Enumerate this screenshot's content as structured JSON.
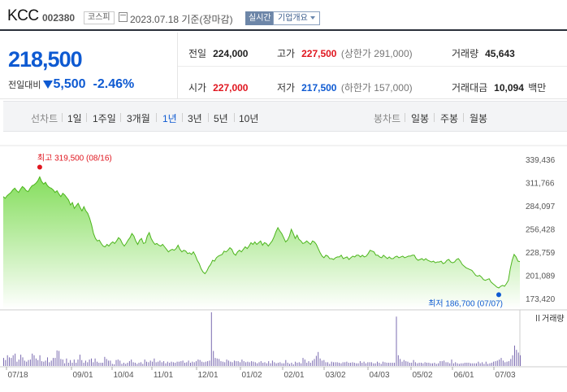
{
  "header": {
    "name": "KCC",
    "code": "002380",
    "market": "코스피",
    "date_text": "2023.07.18 기준(장마감)",
    "realtime_label": "실시간",
    "company_label": "기업개요"
  },
  "summary": {
    "price": "218,500",
    "change_label": "전일대비",
    "change": "5,500",
    "change_pct": "-2.46%",
    "prev_close_label": "전일",
    "prev_close": "224,000",
    "high_label": "고가",
    "high": "227,500",
    "upper_limit": "(상한가 291,000)",
    "volume_label": "거래량",
    "volume": "45,643",
    "open_label": "시가",
    "open": "227,000",
    "low_label": "저가",
    "low": "217,500",
    "lower_limit": "(하한가 157,000)",
    "value_label": "거래대금",
    "value": "10,094",
    "value_unit": "백만"
  },
  "tabs": {
    "line_label": "선차트",
    "periods": [
      "1일",
      "1주일",
      "3개월",
      "1년",
      "3년",
      "5년",
      "10년"
    ],
    "active_period": "1년",
    "candle_label": "봉차트",
    "candles": [
      "일봉",
      "주봉",
      "월봉"
    ]
  },
  "colors": {
    "price_up": "#e0161f",
    "price_down": "#0e5ad2",
    "area_fill": "#8fe26a",
    "line": "#4cb51c",
    "volume_bar": "#7b6bb0"
  },
  "chart_data": {
    "type": "area",
    "y_ticks": [
      "339,436",
      "311,766",
      "284,097",
      "256,428",
      "228,759",
      "201,089",
      "173,420"
    ],
    "ylim": [
      173420,
      339436
    ],
    "x_ticks": [
      "07/18",
      "09/01",
      "10/04",
      "11/01",
      "12/01",
      "01/02",
      "02/01",
      "03/02",
      "04/03",
      "05/02",
      "06/01",
      "07/03"
    ],
    "max_annotation": "최고 319,500 (08/16)",
    "min_annotation": "최저 186,700 (07/07)",
    "max_value": 319500,
    "min_value": 186700,
    "volume_label": "거래량",
    "series": [
      {
        "values": [
          296000,
          294000,
          297000,
          299000,
          301000,
          304000,
          306000,
          303000,
          301000,
          305000,
          308000,
          306000,
          303000,
          302000,
          306000,
          309000,
          310000,
          312000,
          315000,
          319500,
          314000,
          311000,
          313000,
          309000,
          307000,
          306000,
          304000,
          301000,
          303000,
          299000,
          296000,
          300000,
          298000,
          295000,
          292000,
          286000,
          289000,
          282000,
          285000,
          288000,
          283000,
          279000,
          284000,
          279000,
          276000,
          270000,
          262000,
          252000,
          246000,
          243000,
          244000,
          240000,
          237000,
          236000,
          239000,
          237000,
          240000,
          242000,
          240000,
          243000,
          247000,
          245000,
          240000,
          237000,
          240000,
          244000,
          247000,
          252000,
          249000,
          243000,
          239000,
          244000,
          246000,
          240000,
          241000,
          249000,
          253000,
          246000,
          242000,
          239000,
          240000,
          238000,
          237000,
          239000,
          236000,
          233000,
          230000,
          232000,
          233000,
          232000,
          234000,
          238000,
          233000,
          230000,
          232000,
          231000,
          228000,
          229000,
          227000,
          230000,
          226000,
          220000,
          216000,
          210000,
          206000,
          204000,
          207000,
          212000,
          215000,
          220000,
          219000,
          223000,
          225000,
          226000,
          227000,
          231000,
          230000,
          232000,
          235000,
          233000,
          228000,
          226000,
          230000,
          232000,
          230000,
          233000,
          236000,
          234000,
          237000,
          241000,
          239000,
          242000,
          239000,
          241000,
          243000,
          238000,
          241000,
          240000,
          237000,
          240000,
          243000,
          248000,
          254000,
          259000,
          255000,
          252000,
          247000,
          242000,
          244000,
          249000,
          257000,
          252000,
          246000,
          250000,
          245000,
          243000,
          240000,
          241000,
          243000,
          241000,
          239000,
          243000,
          242000,
          239000,
          234000,
          229000,
          225000,
          223000,
          226000,
          225000,
          222000,
          222000,
          221000,
          223000,
          224000,
          224000,
          226000,
          222000,
          223000,
          224000,
          221000,
          223000,
          225000,
          224000,
          226000,
          226000,
          224000,
          226000,
          224000,
          225000,
          228000,
          232000,
          231000,
          230000,
          226000,
          226000,
          224000,
          223000,
          226000,
          224000,
          222000,
          224000,
          222000,
          222000,
          224000,
          225000,
          223000,
          224000,
          225000,
          223000,
          224000,
          225000,
          225000,
          226000,
          226000,
          222000,
          220000,
          221000,
          222000,
          220000,
          222000,
          220000,
          219000,
          218000,
          219000,
          217000,
          218000,
          218000,
          219000,
          216000,
          217000,
          220000,
          221000,
          218000,
          217000,
          218000,
          221000,
          222000,
          219000,
          215000,
          213000,
          211000,
          210000,
          209000,
          208000,
          205000,
          202000,
          201000,
          202000,
          200000,
          197000,
          196000,
          197000,
          198000,
          194000,
          192000,
          190000,
          188000,
          187000,
          189000,
          190000,
          189000,
          192000,
          196000,
          210000,
          220000,
          227000,
          224000,
          219000,
          218500
        ]
      }
    ],
    "volume": [
      0.15,
      0.11,
      0.2,
      0.16,
      0.15,
      0.2,
      0.23,
      0.08,
      0.12,
      0.21,
      0.16,
      0.1,
      0.08,
      0.11,
      0.12,
      0.23,
      0.2,
      0.14,
      0.11,
      0.2,
      0.09,
      0.08,
      0.1,
      0.16,
      0.07,
      0.1,
      0.15,
      0.15,
      0.29,
      0.28,
      0.13,
      0.12,
      0.05,
      0.14,
      0.06,
      0.11,
      0.06,
      0.12,
      0.06,
      0.12,
      0.21,
      0.11,
      0.06,
      0.1,
      0.07,
      0.12,
      0.14,
      0.07,
      0.14,
      0.08,
      0.06,
      0.06,
      0.06,
      0.17,
      0.13,
      0.1,
      0.1,
      0.04,
      0.03,
      0.11,
      0.12,
      0.1,
      0.04,
      0.06,
      0.04,
      0.06,
      0.09,
      0.12,
      0.07,
      0.06,
      0.04,
      0.06,
      0.07,
      0.04,
      0.12,
      0.08,
      0.07,
      0.1,
      0.08,
      0.14,
      0.07,
      0.08,
      0.1,
      0.07,
      0.09,
      0.05,
      0.08,
      0.06,
      0.08,
      0.07,
      0.06,
      0.08,
      0.08,
      0.09,
      0.1,
      0.06,
      0.07,
      0.1,
      0.06,
      0.08,
      0.07,
      0.09,
      0.12,
      0.11,
      0.08,
      0.07,
      0.08,
      0.09,
      0.1,
      1.0,
      0.28,
      0.15,
      0.14,
      0.13,
      0.09,
      0.08,
      0.07,
      0.12,
      0.1,
      0.08,
      0.07,
      0.1,
      0.09,
      0.09,
      0.07,
      0.12,
      0.09,
      0.07,
      0.08,
      0.07,
      0.09,
      0.08,
      0.07,
      0.05,
      0.07,
      0.09,
      0.06,
      0.07,
      0.05,
      0.09,
      0.05,
      0.1,
      0.07,
      0.05,
      0.06,
      0.07,
      0.05,
      0.05,
      0.11,
      0.06,
      0.04,
      0.06,
      0.03,
      0.08,
      0.06,
      0.07,
      0.05,
      0.15,
      0.12,
      0.06,
      0.09,
      0.06,
      0.1,
      0.13,
      0.19,
      0.26,
      0.14,
      0.1,
      0.11,
      0.07,
      0.07,
      0.04,
      0.08,
      0.07,
      0.07,
      0.07,
      0.06,
      0.05,
      0.07,
      0.07,
      0.08,
      0.06,
      0.06,
      0.07,
      0.06,
      0.05,
      0.05,
      0.09,
      0.06,
      0.08,
      0.05,
      0.07,
      0.07,
      0.07,
      0.05,
      0.05,
      0.08,
      0.06,
      0.04,
      0.08,
      0.07,
      0.06,
      0.06,
      0.06,
      0.06,
      0.06,
      0.92,
      0.2,
      0.13,
      0.08,
      0.11,
      0.09,
      0.08,
      0.06,
      0.06,
      0.11,
      0.07,
      0.05,
      0.06,
      0.06,
      0.05,
      0.07,
      0.06,
      0.06,
      0.05,
      0.05,
      0.06,
      0.04,
      0.05,
      0.09,
      0.09,
      0.1,
      0.07,
      0.07,
      0.05,
      0.12,
      0.05,
      0.07,
      0.05,
      0.04,
      0.05,
      0.05,
      0.06,
      0.06,
      0.06,
      0.05,
      0.05,
      0.05,
      0.05,
      0.08,
      0.05,
      0.07,
      0.04,
      0.08,
      0.04,
      0.05,
      0.06,
      0.08,
      0.09,
      0.1,
      0.12,
      0.15,
      0.1,
      0.07,
      0.08,
      0.09,
      0.13,
      0.2,
      0.38,
      0.3,
      0.25,
      0.2
    ]
  }
}
